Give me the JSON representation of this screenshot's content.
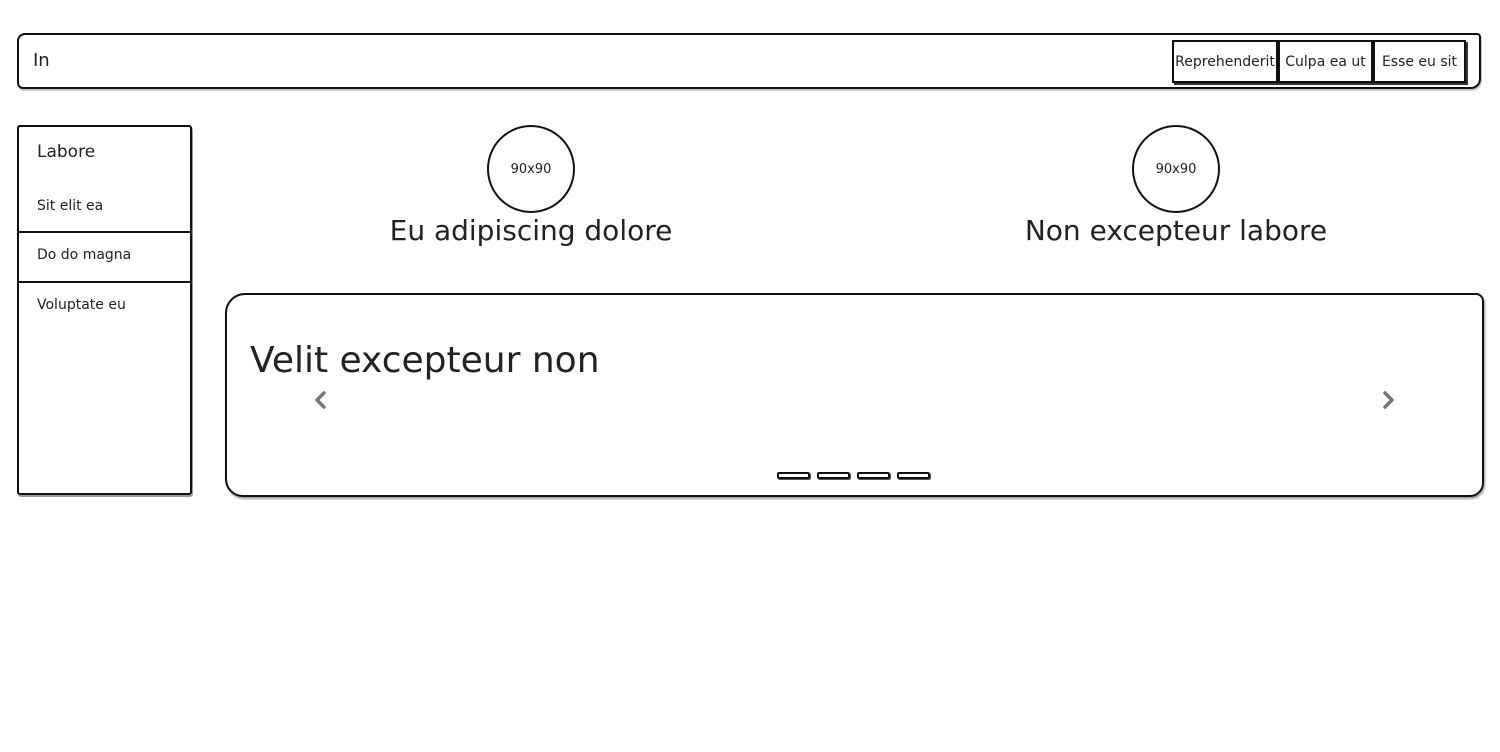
{
  "navbar": {
    "brand": "In",
    "buttons": [
      {
        "label": "Reprehenderit"
      },
      {
        "label": "Culpa ea ut"
      },
      {
        "label": "Esse eu sit"
      }
    ]
  },
  "sidebar": {
    "title": "Labore",
    "items": [
      {
        "label": "Sit elit ea"
      },
      {
        "label": "Do do magna"
      },
      {
        "label": "Voluptate eu"
      }
    ]
  },
  "features": [
    {
      "image_label": "90x90",
      "title": "Eu adipiscing dolore"
    },
    {
      "image_label": "90x90",
      "title": "Non excepteur labore"
    }
  ],
  "carousel": {
    "title": "Velit excepteur non",
    "prev_icon": "chevron-left-icon",
    "next_icon": "chevron-right-icon",
    "indicator_count": 4
  }
}
